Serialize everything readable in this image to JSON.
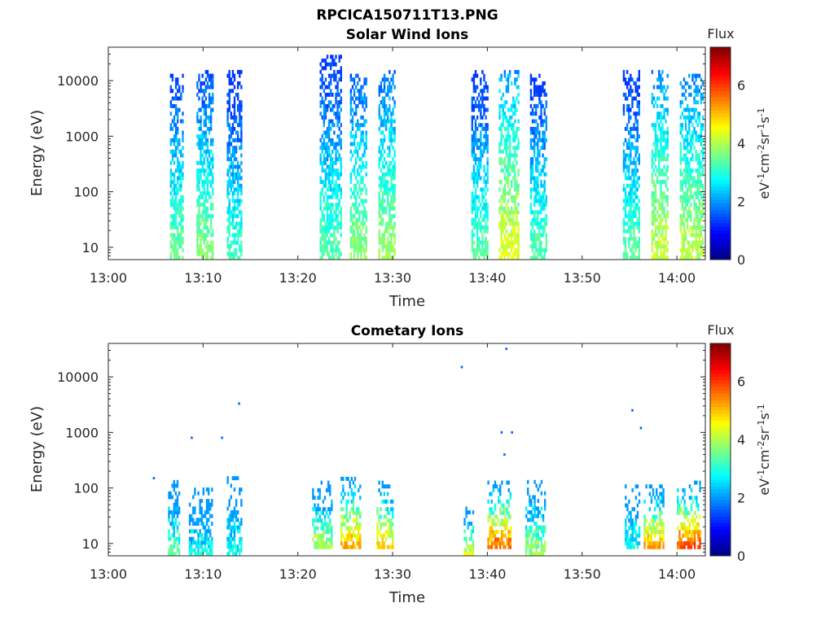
{
  "figure": {
    "title": "RPCICA150711T13.PNG"
  },
  "chart_data": [
    {
      "type": "heatmap",
      "title": "Solar Wind Ions",
      "xlabel": "Time",
      "ylabel": "Energy (eV)",
      "x_ticks": [
        "13:00",
        "13:10",
        "13:20",
        "13:30",
        "13:40",
        "13:50",
        "14:00"
      ],
      "y_ticks": [
        "10",
        "100",
        "1000",
        "10000"
      ],
      "x_range": [
        "13:00",
        "14:03"
      ],
      "y_range": [
        6,
        40000
      ],
      "y_scale": "log",
      "colorbar": {
        "title": "Flux",
        "label": "eV-1cm-2sr-1s-1",
        "ticks": [
          "0",
          "2",
          "4",
          "6"
        ],
        "range": [
          0,
          7.3
        ],
        "colormap": "jet"
      },
      "bursts": [
        {
          "start_min": 6.5,
          "end_min": 7.8,
          "emax": 13000,
          "emin": 6,
          "peak_flux": 3.6
        },
        {
          "start_min": 9.3,
          "end_min": 11.0,
          "emax": 15000,
          "emin": 6,
          "peak_flux": 3.8
        },
        {
          "start_min": 12.5,
          "end_min": 14.0,
          "emax": 15000,
          "emin": 6,
          "peak_flux": 3.3
        },
        {
          "start_min": 22.3,
          "end_min": 24.5,
          "emax": 25000,
          "emin": 6,
          "peak_flux": 3.5
        },
        {
          "start_min": 25.5,
          "end_min": 27.2,
          "emax": 13000,
          "emin": 6,
          "peak_flux": 3.9
        },
        {
          "start_min": 28.5,
          "end_min": 30.2,
          "emax": 15000,
          "emin": 6,
          "peak_flux": 4.0
        },
        {
          "start_min": 38.3,
          "end_min": 40.0,
          "emax": 15000,
          "emin": 6,
          "peak_flux": 3.5
        },
        {
          "start_min": 41.2,
          "end_min": 43.3,
          "emax": 15000,
          "emin": 6,
          "peak_flux": 4.5
        },
        {
          "start_min": 44.5,
          "end_min": 46.2,
          "emax": 12000,
          "emin": 6,
          "peak_flux": 3.5
        },
        {
          "start_min": 54.3,
          "end_min": 56.0,
          "emax": 15000,
          "emin": 6,
          "peak_flux": 3.5
        },
        {
          "start_min": 57.3,
          "end_min": 59.0,
          "emax": 15000,
          "emin": 6,
          "peak_flux": 4.3
        },
        {
          "start_min": 60.3,
          "end_min": 62.8,
          "emax": 12000,
          "emin": 6,
          "peak_flux": 4.2
        }
      ]
    },
    {
      "type": "heatmap",
      "title": "Cometary Ions",
      "xlabel": "Time",
      "ylabel": "Energy (eV)",
      "x_ticks": [
        "13:00",
        "13:10",
        "13:20",
        "13:30",
        "13:40",
        "13:50",
        "14:00"
      ],
      "y_ticks": [
        "10",
        "100",
        "1000",
        "10000"
      ],
      "x_range": [
        "13:00",
        "14:03"
      ],
      "y_range": [
        6,
        40000
      ],
      "y_scale": "log",
      "colorbar": {
        "title": "Flux",
        "label": "eV-1cm-2sr-1s-1",
        "ticks": [
          "0",
          "2",
          "4",
          "6"
        ],
        "range": [
          0,
          7.3
        ],
        "colormap": "jet"
      },
      "bursts": [
        {
          "start_min": 6.3,
          "end_min": 7.5,
          "emax": 130,
          "emin": 6,
          "peak_flux": 3.6
        },
        {
          "start_min": 8.5,
          "end_min": 11.0,
          "emax": 100,
          "emin": 6,
          "peak_flux": 3.0
        },
        {
          "start_min": 12.5,
          "end_min": 14.0,
          "emax": 150,
          "emin": 6,
          "peak_flux": 3.0
        },
        {
          "start_min": 21.5,
          "end_min": 23.5,
          "emax": 120,
          "emin": 8,
          "peak_flux": 4.2
        },
        {
          "start_min": 24.5,
          "end_min": 26.5,
          "emax": 150,
          "emin": 8,
          "peak_flux": 5.4
        },
        {
          "start_min": 28.3,
          "end_min": 30.0,
          "emax": 130,
          "emin": 8,
          "peak_flux": 5.0
        },
        {
          "start_min": 37.5,
          "end_min": 38.5,
          "emax": 40,
          "emin": 6,
          "peak_flux": 4.5
        },
        {
          "start_min": 40.0,
          "end_min": 42.5,
          "emax": 120,
          "emin": 8,
          "peak_flux": 5.8
        },
        {
          "start_min": 44.0,
          "end_min": 46.0,
          "emax": 120,
          "emin": 6,
          "peak_flux": 4.0
        },
        {
          "start_min": 54.5,
          "end_min": 56.0,
          "emax": 100,
          "emin": 8,
          "peak_flux": 3.0
        },
        {
          "start_min": 56.5,
          "end_min": 58.5,
          "emax": 100,
          "emin": 8,
          "peak_flux": 5.4
        },
        {
          "start_min": 60.0,
          "end_min": 62.5,
          "emax": 120,
          "emin": 8,
          "peak_flux": 6.0
        }
      ],
      "points": [
        {
          "t_min": 4.8,
          "e": 150
        },
        {
          "t_min": 8.8,
          "e": 800
        },
        {
          "t_min": 12.0,
          "e": 800
        },
        {
          "t_min": 13.8,
          "e": 3300
        },
        {
          "t_min": 37.3,
          "e": 15000
        },
        {
          "t_min": 42.0,
          "e": 32000
        },
        {
          "t_min": 41.5,
          "e": 1000
        },
        {
          "t_min": 42.6,
          "e": 1000
        },
        {
          "t_min": 41.8,
          "e": 400
        },
        {
          "t_min": 55.3,
          "e": 2500
        },
        {
          "t_min": 56.2,
          "e": 1200
        }
      ]
    }
  ]
}
